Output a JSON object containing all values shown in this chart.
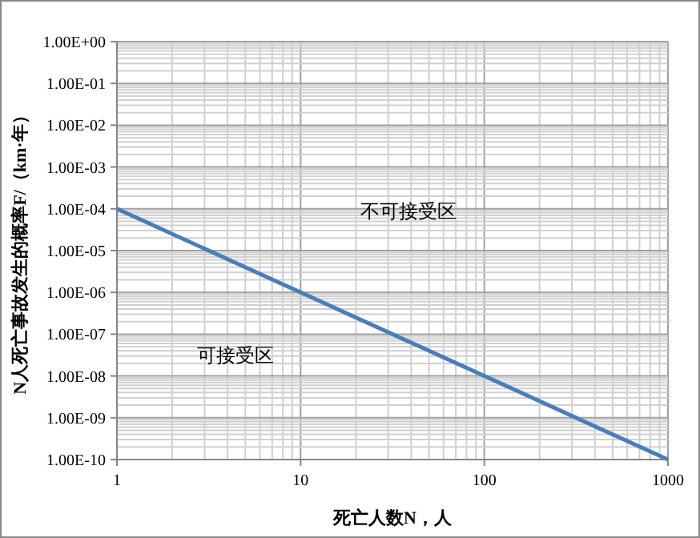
{
  "chart_data": {
    "type": "line",
    "log": "xy",
    "xlabel": "死亡人数N，人",
    "ylabel": "N人死亡事故发生的概率F/（km·年）",
    "annotations": [
      "不可接受区",
      "可接受区"
    ],
    "xlim": [
      1,
      1000
    ],
    "xticks": [
      1,
      10,
      100,
      1000
    ],
    "ylim": [
      1e-10,
      1
    ],
    "yticks": [
      {
        "value": 1e-10,
        "label": "1.00E-10"
      },
      {
        "value": 1e-09,
        "label": "1.00E-09"
      },
      {
        "value": 1e-08,
        "label": "1.00E-08"
      },
      {
        "value": 1e-07,
        "label": "1.00E-07"
      },
      {
        "value": 1e-06,
        "label": "1.00E-06"
      },
      {
        "value": 1e-05,
        "label": "1.00E-05"
      },
      {
        "value": 0.0001,
        "label": "1.00E-04"
      },
      {
        "value": 0.001,
        "label": "1.00E-03"
      },
      {
        "value": 0.01,
        "label": "1.00E-02"
      },
      {
        "value": 0.1,
        "label": "1.00E-01"
      },
      {
        "value": 1,
        "label": "1.00E+00"
      }
    ],
    "grid": true,
    "marker": "none",
    "line_style": "solid",
    "series": [
      {
        "color": "#4a7ebb",
        "x": [
          1,
          1000
        ],
        "values": [
          0.0001,
          1e-10
        ]
      }
    ]
  }
}
